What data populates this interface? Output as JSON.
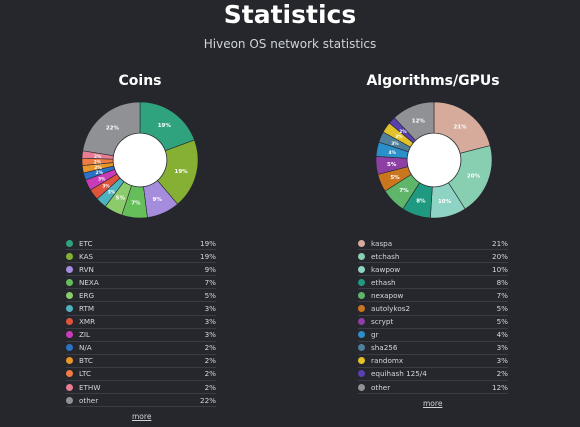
{
  "header": {
    "title": "Statistics",
    "subtitle": "Hiveon OS network statistics"
  },
  "coins": {
    "title": "Coins",
    "more_label": "more",
    "items": [
      {
        "name": "ETC",
        "pct": "19%",
        "value": 19,
        "color": "#2fa37e"
      },
      {
        "name": "KAS",
        "pct": "19%",
        "value": 19,
        "color": "#86b034"
      },
      {
        "name": "RVN",
        "pct": "9%",
        "value": 9,
        "color": "#a68cdc"
      },
      {
        "name": "NEXA",
        "pct": "7%",
        "value": 7,
        "color": "#65be5a"
      },
      {
        "name": "ERG",
        "pct": "5%",
        "value": 5,
        "color": "#8ccb6b"
      },
      {
        "name": "RTM",
        "pct": "3%",
        "value": 3,
        "color": "#4fb3bf"
      },
      {
        "name": "XMR",
        "pct": "3%",
        "value": 3,
        "color": "#e0543c"
      },
      {
        "name": "ZIL",
        "pct": "3%",
        "value": 3,
        "color": "#c93cb8"
      },
      {
        "name": "N/A",
        "pct": "2%",
        "value": 2,
        "color": "#2a72c4"
      },
      {
        "name": "BTC",
        "pct": "2%",
        "value": 2,
        "color": "#e8962a"
      },
      {
        "name": "LTC",
        "pct": "2%",
        "value": 2,
        "color": "#ef7d43"
      },
      {
        "name": "ETHW",
        "pct": "2%",
        "value": 2,
        "color": "#e77c92"
      },
      {
        "name": "other",
        "pct": "22%",
        "value": 22,
        "color": "#8f9194"
      }
    ]
  },
  "algos": {
    "title": "Algorithms/GPUs",
    "more_label": "more",
    "items": [
      {
        "name": "kaspa",
        "pct": "21%",
        "value": 21,
        "color": "#d6ab9c"
      },
      {
        "name": "etchash",
        "pct": "20%",
        "value": 20,
        "color": "#88cfb1"
      },
      {
        "name": "kawpow",
        "pct": "10%",
        "value": 10,
        "color": "#8fd3c4"
      },
      {
        "name": "ethash",
        "pct": "8%",
        "value": 8,
        "color": "#1f9a80"
      },
      {
        "name": "nexapow",
        "pct": "7%",
        "value": 7,
        "color": "#5fb56a"
      },
      {
        "name": "autolykos2",
        "pct": "5%",
        "value": 5,
        "color": "#c9761f"
      },
      {
        "name": "scrypt",
        "pct": "5%",
        "value": 5,
        "color": "#8e3fa4"
      },
      {
        "name": "gr",
        "pct": "4%",
        "value": 4,
        "color": "#2b8fc9"
      },
      {
        "name": "sha256",
        "pct": "3%",
        "value": 3,
        "color": "#4f7f9a"
      },
      {
        "name": "randomx",
        "pct": "3%",
        "value": 3,
        "color": "#e2c22a"
      },
      {
        "name": "equihash 125/4",
        "pct": "2%",
        "value": 2,
        "color": "#5a3fae"
      },
      {
        "name": "other",
        "pct": "12%",
        "value": 12,
        "color": "#8f9194"
      }
    ]
  }
}
